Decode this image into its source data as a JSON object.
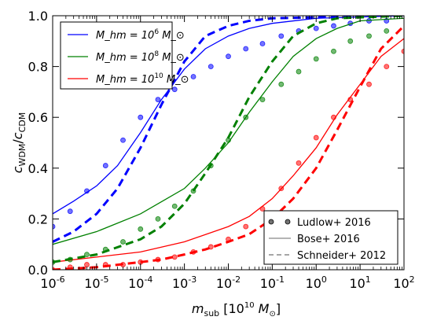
{
  "chart_data": {
    "type": "line",
    "x_scale": "log",
    "xlim": [
      1e-06,
      100
    ],
    "ylim": [
      0.0,
      1.0
    ],
    "grid": false,
    "xlabel": "m_sub [10^10 M_⊙]",
    "ylabel": "c_WDM / c_CDM",
    "x_ticks": [
      {
        "value": 1e-06,
        "base": "10",
        "exp": "-6"
      },
      {
        "value": 1e-05,
        "base": "10",
        "exp": "-5"
      },
      {
        "value": 0.0001,
        "base": "10",
        "exp": "-4"
      },
      {
        "value": 0.001,
        "base": "10",
        "exp": "-3"
      },
      {
        "value": 0.01,
        "base": "10",
        "exp": "-2"
      },
      {
        "value": 0.1,
        "base": "10",
        "exp": "-1"
      },
      {
        "value": 1,
        "base": "10",
        "exp": "0"
      },
      {
        "value": 10,
        "base": "10",
        "exp": "1"
      },
      {
        "value": 100,
        "base": "10",
        "exp": "2"
      }
    ],
    "y_ticks": [
      "0.0",
      "0.2",
      "0.4",
      "0.6",
      "0.8",
      "1.0"
    ],
    "legend_mass": {
      "placement": "top-left",
      "entries": [
        {
          "label_main": "M_hm = 10",
          "label_exp": "6",
          "label_unit": " M_⊙",
          "color": "#0000ff"
        },
        {
          "label_main": "M_hm = 10",
          "label_exp": "8",
          "label_unit": " M_⊙",
          "color": "#008000"
        },
        {
          "label_main": "M_hm = 10",
          "label_exp": "10",
          "label_unit": " M_⊙",
          "color": "#ff0000"
        }
      ]
    },
    "legend_style": {
      "placement": "bottom-right",
      "entries": [
        {
          "label": "Ludlow+ 2016",
          "style": "points"
        },
        {
          "label": "Bose+ 2016",
          "style": "solid"
        },
        {
          "label": "Schneider+ 2012",
          "style": "dashed"
        }
      ]
    },
    "series": [
      {
        "color": "#0000ff",
        "solid": [
          [
            1e-06,
            0.22
          ],
          [
            3e-06,
            0.27
          ],
          [
            1e-05,
            0.33
          ],
          [
            3e-05,
            0.41
          ],
          [
            0.0001,
            0.54
          ],
          [
            0.0003,
            0.67
          ],
          [
            0.001,
            0.79
          ],
          [
            0.003,
            0.87
          ],
          [
            0.01,
            0.92
          ],
          [
            0.03,
            0.95
          ],
          [
            0.1,
            0.97
          ],
          [
            1,
            0.99
          ],
          [
            100,
            1.0
          ]
        ],
        "dashed": [
          [
            1e-06,
            0.11
          ],
          [
            3e-06,
            0.15
          ],
          [
            1e-05,
            0.22
          ],
          [
            3e-05,
            0.32
          ],
          [
            0.0001,
            0.48
          ],
          [
            0.0003,
            0.65
          ],
          [
            0.001,
            0.82
          ],
          [
            0.003,
            0.92
          ],
          [
            0.01,
            0.96
          ],
          [
            0.03,
            0.98
          ],
          [
            0.1,
            0.99
          ],
          [
            100,
            1.0
          ]
        ],
        "points": [
          [
            1e-06,
            0.17
          ],
          [
            2.5e-06,
            0.23
          ],
          [
            6e-06,
            0.31
          ],
          [
            1.6e-05,
            0.41
          ],
          [
            4e-05,
            0.51
          ],
          [
            0.0001,
            0.6
          ],
          [
            0.00025,
            0.67
          ],
          [
            0.0006,
            0.71
          ],
          [
            0.0016,
            0.76
          ],
          [
            0.004,
            0.8
          ],
          [
            0.01,
            0.84
          ],
          [
            0.025,
            0.87
          ],
          [
            0.06,
            0.89
          ],
          [
            0.16,
            0.92
          ],
          [
            0.4,
            0.94
          ],
          [
            1,
            0.95
          ],
          [
            2.5,
            0.96
          ],
          [
            6,
            0.97
          ],
          [
            16,
            0.98
          ],
          [
            40,
            0.98
          ]
        ]
      },
      {
        "color": "#008000",
        "solid": [
          [
            1e-06,
            0.1
          ],
          [
            1e-05,
            0.15
          ],
          [
            0.0001,
            0.22
          ],
          [
            0.001,
            0.32
          ],
          [
            0.003,
            0.4
          ],
          [
            0.01,
            0.5
          ],
          [
            0.03,
            0.62
          ],
          [
            0.1,
            0.74
          ],
          [
            0.3,
            0.84
          ],
          [
            1,
            0.91
          ],
          [
            3,
            0.95
          ],
          [
            10,
            0.98
          ],
          [
            100,
            0.99
          ]
        ],
        "dashed": [
          [
            1e-06,
            0.03
          ],
          [
            1e-05,
            0.06
          ],
          [
            0.0001,
            0.12
          ],
          [
            0.0003,
            0.17
          ],
          [
            0.001,
            0.26
          ],
          [
            0.003,
            0.38
          ],
          [
            0.01,
            0.52
          ],
          [
            0.03,
            0.68
          ],
          [
            0.1,
            0.82
          ],
          [
            0.3,
            0.92
          ],
          [
            1,
            0.97
          ],
          [
            3,
            0.99
          ],
          [
            100,
            1.0
          ]
        ],
        "points": [
          [
            1e-06,
            0.03
          ],
          [
            2.5e-06,
            0.04
          ],
          [
            6e-06,
            0.06
          ],
          [
            1.6e-05,
            0.08
          ],
          [
            4e-05,
            0.11
          ],
          [
            0.0001,
            0.16
          ],
          [
            0.00025,
            0.2
          ],
          [
            0.0006,
            0.25
          ],
          [
            0.0016,
            0.31
          ],
          [
            0.004,
            0.41
          ],
          [
            0.01,
            0.51
          ],
          [
            0.025,
            0.6
          ],
          [
            0.06,
            0.67
          ],
          [
            0.16,
            0.73
          ],
          [
            0.4,
            0.78
          ],
          [
            1,
            0.83
          ],
          [
            2.5,
            0.86
          ],
          [
            6,
            0.9
          ],
          [
            16,
            0.92
          ],
          [
            40,
            0.94
          ]
        ]
      },
      {
        "color": "#ff0000",
        "solid": [
          [
            1e-06,
            0.03
          ],
          [
            1e-05,
            0.05
          ],
          [
            0.0001,
            0.07
          ],
          [
            0.001,
            0.11
          ],
          [
            0.01,
            0.17
          ],
          [
            0.03,
            0.21
          ],
          [
            0.1,
            0.28
          ],
          [
            0.3,
            0.37
          ],
          [
            1,
            0.48
          ],
          [
            3,
            0.61
          ],
          [
            10,
            0.73
          ],
          [
            30,
            0.84
          ],
          [
            100,
            0.91
          ]
        ],
        "dashed": [
          [
            1e-06,
            0.0
          ],
          [
            1e-05,
            0.01
          ],
          [
            0.0001,
            0.03
          ],
          [
            0.0003,
            0.04
          ],
          [
            0.001,
            0.06
          ],
          [
            0.003,
            0.08
          ],
          [
            0.01,
            0.11
          ],
          [
            0.03,
            0.14
          ],
          [
            0.1,
            0.2
          ],
          [
            0.3,
            0.28
          ],
          [
            1,
            0.4
          ],
          [
            3,
            0.55
          ],
          [
            10,
            0.72
          ],
          [
            30,
            0.87
          ],
          [
            100,
            0.96
          ]
        ],
        "points": [
          [
            1e-06,
            0.0
          ],
          [
            2.5e-06,
            0.01
          ],
          [
            6e-06,
            0.02
          ],
          [
            1.6e-05,
            0.02
          ],
          [
            4e-05,
            0.02
          ],
          [
            0.0001,
            0.03
          ],
          [
            0.00025,
            0.04
          ],
          [
            0.0006,
            0.05
          ],
          [
            0.0016,
            0.07
          ],
          [
            0.004,
            0.09
          ],
          [
            0.01,
            0.12
          ],
          [
            0.025,
            0.17
          ],
          [
            0.06,
            0.24
          ],
          [
            0.16,
            0.32
          ],
          [
            0.4,
            0.42
          ],
          [
            1,
            0.52
          ],
          [
            2.5,
            0.6
          ],
          [
            6,
            0.67
          ],
          [
            16,
            0.73
          ],
          [
            40,
            0.8
          ],
          [
            100,
            0.86
          ]
        ]
      }
    ]
  }
}
